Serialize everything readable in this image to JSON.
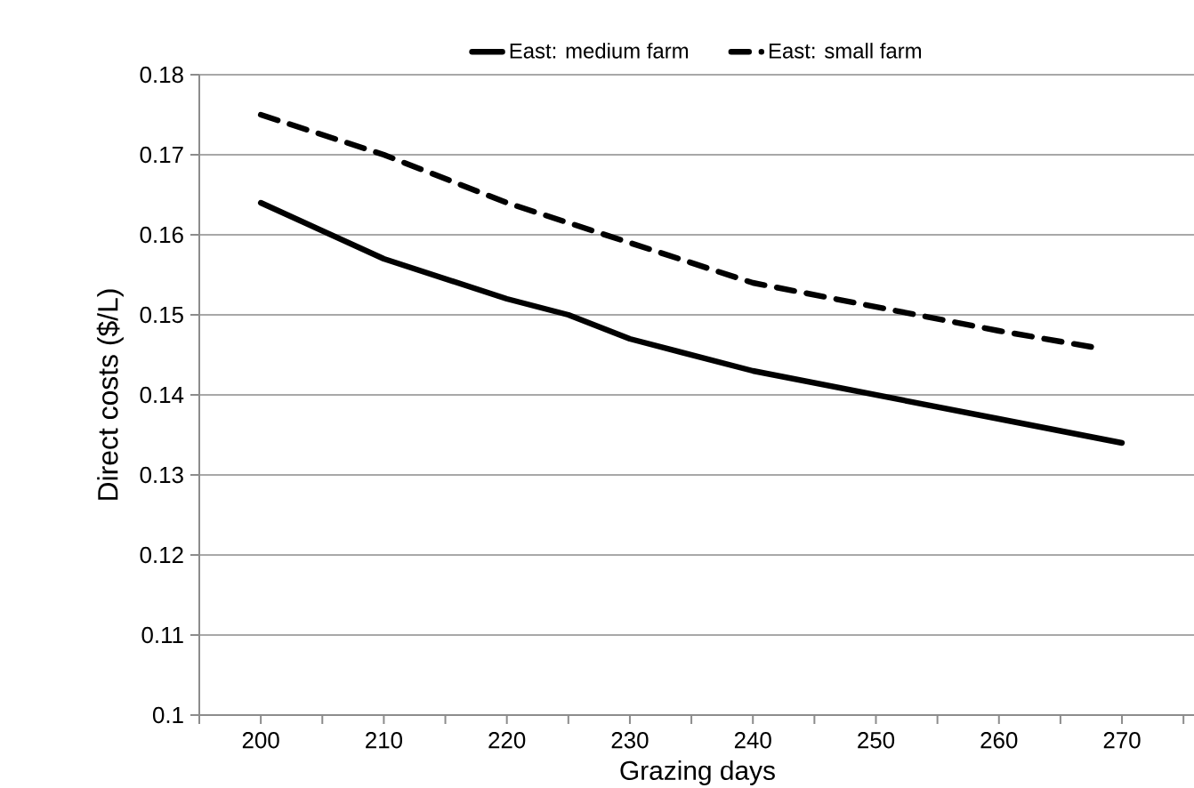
{
  "chart_data": {
    "type": "line",
    "xlabel": "Grazing days",
    "ylabel": "Direct costs ($/L)",
    "series": [
      {
        "name": "East: medium farm",
        "color": "#000000",
        "line_style": "solid",
        "x": [
          200,
          210,
          220,
          225,
          230,
          240,
          250,
          260,
          270
        ],
        "values": [
          0.164,
          0.157,
          0.152,
          0.15,
          0.147,
          0.143,
          0.14,
          0.137,
          0.134
        ]
      },
      {
        "name": "East: small farm",
        "color": "#000000",
        "line_style": "dashed",
        "x": [
          200,
          210,
          220,
          230,
          240,
          250,
          260,
          267.5
        ],
        "values": [
          0.175,
          0.17,
          0.164,
          0.159,
          0.154,
          0.151,
          0.148,
          0.146
        ]
      }
    ],
    "xlim": [
      195,
      276
    ],
    "xticks": [
      {
        "value": 195,
        "label": null
      },
      200,
      {
        "value": 205,
        "label": null
      },
      210,
      {
        "value": 215,
        "label": null
      },
      220,
      {
        "value": 225,
        "label": null
      },
      230,
      {
        "value": 235,
        "label": null
      },
      240,
      {
        "value": 245,
        "label": null
      },
      250,
      {
        "value": 255,
        "label": null
      },
      260,
      {
        "value": 265,
        "label": null
      },
      270,
      {
        "value": 275,
        "label": null
      }
    ],
    "ylim": [
      0.1,
      0.18
    ],
    "yticks": [
      0.1,
      0.11,
      0.12,
      0.13,
      0.14,
      0.15,
      0.16,
      0.17,
      0.18
    ],
    "grid": "y",
    "legend": "top"
  }
}
